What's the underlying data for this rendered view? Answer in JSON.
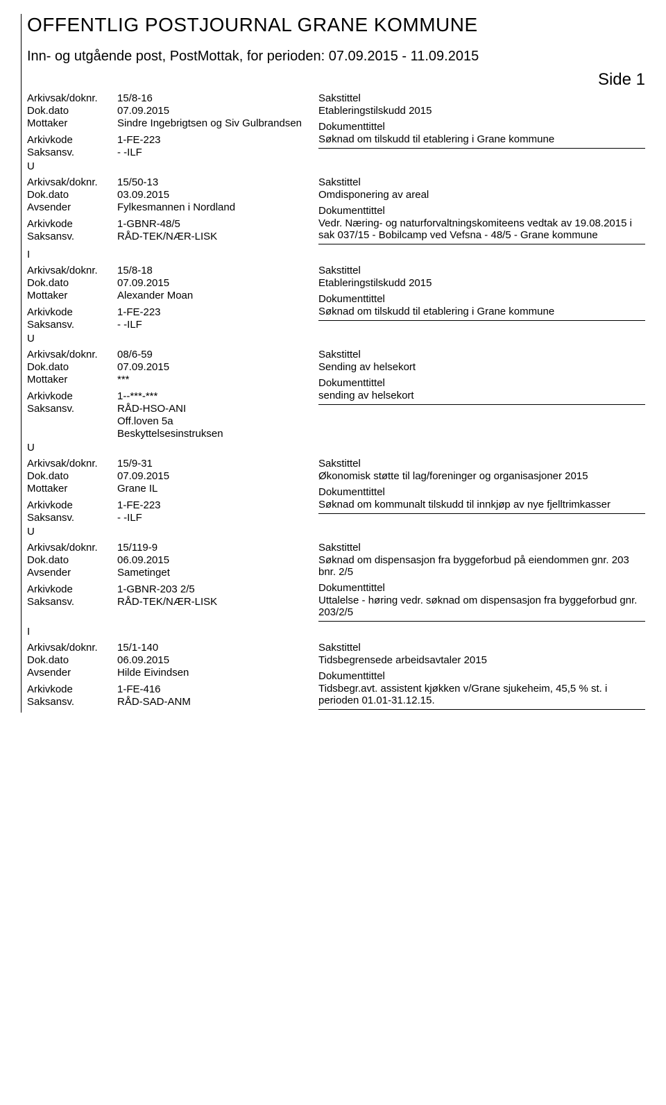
{
  "header": {
    "main_title": "OFFENTLIG POSTJOURNAL GRANE KOMMUNE",
    "subtitle": "Inn- og utgående post, PostMottak, for perioden: 07.09.2015 - 11.09.2015",
    "side_label": "Side 1"
  },
  "labels": {
    "arkivsak": "Arkivsak/doknr.",
    "dokdato": "Dok.dato",
    "mottaker": "Mottaker",
    "avsender": "Avsender",
    "arkivkode": "Arkivkode",
    "saksansv": "Saksansv.",
    "sakstittel": "Sakstittel",
    "dokumenttittel": "Dokumenttittel"
  },
  "entries": [
    {
      "indicator": "",
      "arkivsak": "15/8-16",
      "dokdato": "07.09.2015",
      "party_label": "Mottaker",
      "party": "Sindre Ingebrigtsen og Siv Gulbrandsen",
      "arkivkode": "1-FE-223",
      "saksansv": "- -ILF",
      "extra_lines": [],
      "sakstittel": "Etableringstilskudd 2015",
      "dokumenttittel": "Søknad om tilskudd til etablering i Grane kommune",
      "trailing_indicator": "U"
    },
    {
      "indicator": "",
      "arkivsak": "15/50-13",
      "dokdato": "03.09.2015",
      "party_label": "Avsender",
      "party": "Fylkesmannen i Nordland",
      "arkivkode": "1-GBNR-48/5",
      "saksansv": "RÅD-TEK/NÆR-LISK",
      "extra_lines": [],
      "sakstittel": "Omdisponering av areal",
      "dokumenttittel": "Vedr. Næring- og naturforvaltningskomiteens vedtak av 19.08.2015 i sak 037/15 - Bobilcamp ved Vefsna - 48/5 - Grane kommune",
      "trailing_indicator": "I"
    },
    {
      "indicator": "",
      "arkivsak": "15/8-18",
      "dokdato": "07.09.2015",
      "party_label": "Mottaker",
      "party": "Alexander Moan",
      "arkivkode": "1-FE-223",
      "saksansv": "- -ILF",
      "extra_lines": [],
      "sakstittel": "Etableringstilskudd 2015",
      "dokumenttittel": "Søknad om tilskudd til etablering i Grane kommune",
      "trailing_indicator": "U"
    },
    {
      "indicator": "",
      "arkivsak": "08/6-59",
      "dokdato": "07.09.2015",
      "party_label": "Mottaker",
      "party": "***",
      "arkivkode": "1--***-***",
      "saksansv": "RÅD-HSO-ANI",
      "extra_lines": [
        "Off.loven 5a",
        "Beskyttelsesinstruksen"
      ],
      "sakstittel": "Sending av helsekort",
      "dokumenttittel": "sending av helsekort",
      "trailing_indicator": "U"
    },
    {
      "indicator": "",
      "arkivsak": "15/9-31",
      "dokdato": "07.09.2015",
      "party_label": "Mottaker",
      "party": "Grane IL",
      "arkivkode": "1-FE-223",
      "saksansv": "- -ILF",
      "extra_lines": [],
      "sakstittel": "Økonomisk støtte til lag/foreninger og organisasjoner 2015",
      "dokumenttittel": "Søknad om kommunalt tilskudd til innkjøp av nye fjelltrimkasser",
      "trailing_indicator": "U"
    },
    {
      "indicator": "",
      "arkivsak": "15/119-9",
      "dokdato": "06.09.2015",
      "party_label": "Avsender",
      "party": "Sametinget",
      "arkivkode": "1-GBNR-203 2/5",
      "saksansv": "RÅD-TEK/NÆR-LISK",
      "extra_lines": [],
      "sakstittel": "Søknad om dispensasjon fra byggeforbud på eiendommen gnr. 203 bnr. 2/5",
      "dokumenttittel": "Uttalelse - høring vedr. søknad om dispensasjon fra byggeforbud gnr. 203/2/5",
      "trailing_indicator": "I"
    },
    {
      "indicator": "",
      "arkivsak": "15/1-140",
      "dokdato": "06.09.2015",
      "party_label": "Avsender",
      "party": "Hilde Eivindsen",
      "arkivkode": "1-FE-416",
      "saksansv": "RÅD-SAD-ANM",
      "extra_lines": [],
      "sakstittel": "Tidsbegrensede arbeidsavtaler 2015",
      "dokumenttittel": "Tidsbegr.avt. assistent kjøkken v/Grane sjukeheim, 45,5 % st. i perioden 01.01-31.12.15.",
      "trailing_indicator": ""
    }
  ]
}
